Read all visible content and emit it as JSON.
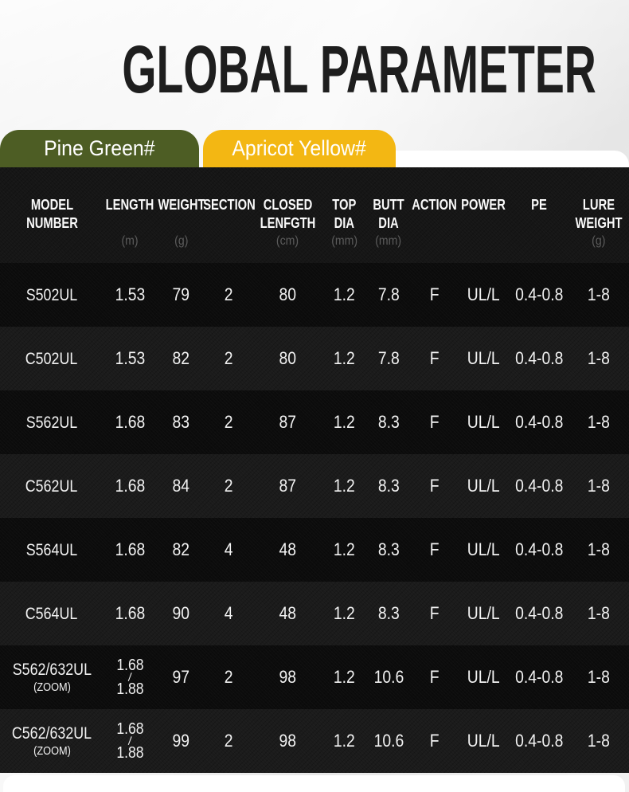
{
  "page": {
    "title": "GLOBAL PARAMETER"
  },
  "tabs": [
    {
      "id": "pine-green",
      "label": "Pine Green#",
      "color": "#4d5d24"
    },
    {
      "id": "apricot-yellow",
      "label": "Apricot Yellow#",
      "color": "#f3b713"
    }
  ],
  "table": {
    "columns": [
      {
        "id": "model-number",
        "lines": [
          "MODEL",
          "NUMBER"
        ],
        "unit": ""
      },
      {
        "id": "length",
        "lines": [
          "LENGTH"
        ],
        "unit": "(m)"
      },
      {
        "id": "weight",
        "lines": [
          "WEIGHT"
        ],
        "unit": "(g)"
      },
      {
        "id": "section",
        "lines": [
          "SECTION"
        ],
        "unit": ""
      },
      {
        "id": "closed-length",
        "lines": [
          "CLOSED",
          "LENFGTH"
        ],
        "unit": "(cm)"
      },
      {
        "id": "top-dia",
        "lines": [
          "TOP",
          "DIA"
        ],
        "unit": "(mm)"
      },
      {
        "id": "butt-dia",
        "lines": [
          "BUTT",
          "DIA"
        ],
        "unit": "(mm)"
      },
      {
        "id": "action",
        "lines": [
          "ACTION"
        ],
        "unit": ""
      },
      {
        "id": "power",
        "lines": [
          "POWER"
        ],
        "unit": ""
      },
      {
        "id": "pe",
        "lines": [
          "PE"
        ],
        "unit": ""
      },
      {
        "id": "lure-weight",
        "lines": [
          "LURE",
          "WEIGHT"
        ],
        "unit": "(g)"
      }
    ],
    "rows": [
      {
        "model": {
          "main": "S502UL",
          "sub": ""
        },
        "values": [
          "1.53",
          "79",
          "2",
          "80",
          "1.2",
          "7.8",
          "F",
          "UL/L",
          "0.4-0.8",
          "1-8"
        ]
      },
      {
        "model": {
          "main": "C502UL",
          "sub": ""
        },
        "values": [
          "1.53",
          "82",
          "2",
          "80",
          "1.2",
          "7.8",
          "F",
          "UL/L",
          "0.4-0.8",
          "1-8"
        ]
      },
      {
        "model": {
          "main": "S562UL",
          "sub": ""
        },
        "values": [
          "1.68",
          "83",
          "2",
          "87",
          "1.2",
          "8.3",
          "F",
          "UL/L",
          "0.4-0.8",
          "1-8"
        ]
      },
      {
        "model": {
          "main": "C562UL",
          "sub": ""
        },
        "values": [
          "1.68",
          "84",
          "2",
          "87",
          "1.2",
          "8.3",
          "F",
          "UL/L",
          "0.4-0.8",
          "1-8"
        ]
      },
      {
        "model": {
          "main": "S564UL",
          "sub": ""
        },
        "values": [
          "1.68",
          "82",
          "4",
          "48",
          "1.2",
          "8.3",
          "F",
          "UL/L",
          "0.4-0.8",
          "1-8"
        ]
      },
      {
        "model": {
          "main": "C564UL",
          "sub": ""
        },
        "values": [
          "1.68",
          "90",
          "4",
          "48",
          "1.2",
          "8.3",
          "F",
          "UL/L",
          "0.4-0.8",
          "1-8"
        ]
      },
      {
        "model": {
          "main": "S562/632UL",
          "sub": "(ZOOM)"
        },
        "values": [
          [
            "1.68",
            "/",
            "1.88"
          ],
          "97",
          "2",
          "98",
          "1.2",
          "10.6",
          "F",
          "UL/L",
          "0.4-0.8",
          "1-8"
        ]
      },
      {
        "model": {
          "main": "C562/632UL",
          "sub": "(ZOOM)"
        },
        "values": [
          [
            "1.68",
            "/",
            "1.88"
          ],
          "99",
          "2",
          "98",
          "1.2",
          "10.6",
          "F",
          "UL/L",
          "0.4-0.8",
          "1-8"
        ]
      }
    ],
    "colors": {
      "table_bg": "#161616",
      "row_odd": "#0c0c0c",
      "row_even": "#1b1b1b",
      "unit_text": "#5c5c5c",
      "cell_text": "#f2f2f2"
    }
  }
}
